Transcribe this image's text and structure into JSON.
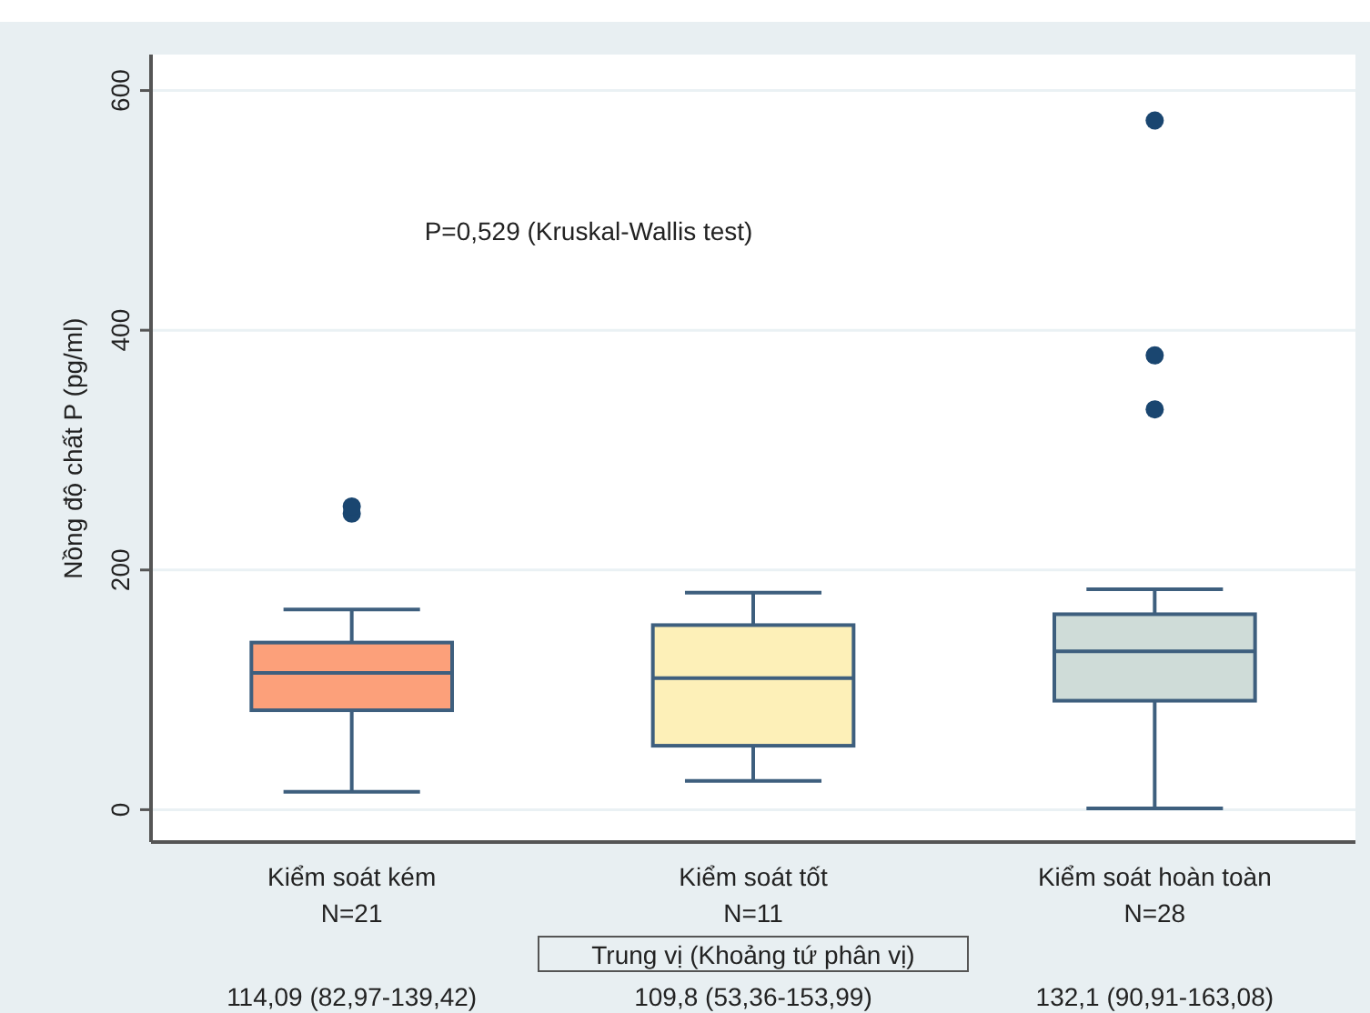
{
  "chart_data": {
    "type": "box",
    "ylabel": "Nồng độ chất P (pg/ml)",
    "categories": [
      "Kiểm soát kém\nN=21",
      "Kiểm soát tốt\nN=11",
      "Kiểm soát hoàn toàn\nN=28"
    ],
    "boxes": [
      {
        "low": 15,
        "q1": 82.97,
        "median": 114.09,
        "q3": 139.42,
        "high": 167,
        "outliers": [
          247,
          253
        ]
      },
      {
        "low": 24,
        "q1": 53.36,
        "median": 109.8,
        "q3": 153.99,
        "high": 181
      },
      {
        "low": 1,
        "q1": 90.91,
        "median": 132.1,
        "q3": 163.08,
        "high": 184,
        "outliers": [
          334,
          379,
          575
        ]
      }
    ],
    "colors": [
      "#fca07a",
      "#fdf0b8",
      "#cfdcd8"
    ],
    "ylim": [
      -27,
      630
    ],
    "yticks": [
      0,
      200,
      400,
      600
    ],
    "grid": "y",
    "annotations": [
      "P=0,529 (Kruskal-Wallis test)",
      "Trung vị (Khoảng tứ phân vị)",
      "114,09 (82,97-139,42)",
      "109,8 (53,36-153,99)",
      "132,1 (90,91-163,08)"
    ]
  }
}
